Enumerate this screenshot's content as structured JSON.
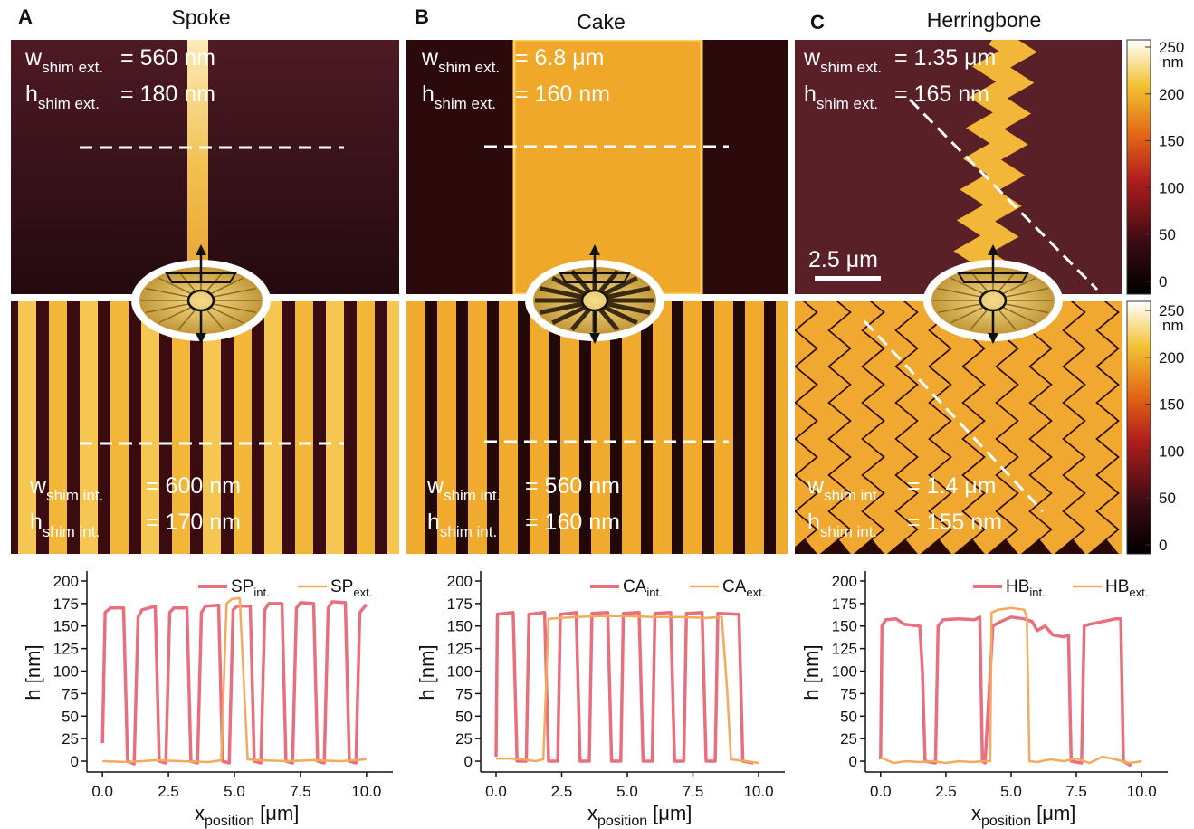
{
  "panels": [
    {
      "label": "A",
      "title": "Spoke",
      "top": [
        {
          "main": "w",
          "sub": "shim ext.",
          "rest": "= 560 nm"
        },
        {
          "main": "h",
          "sub": "shim ext.",
          "rest": "= 180 nm"
        }
      ],
      "bottom": [
        {
          "main": "w",
          "sub": "shim int.",
          "rest": "= 600 nm"
        },
        {
          "main": "h",
          "sub": "shim int.",
          "rest": "= 170 nm"
        }
      ]
    },
    {
      "label": "B",
      "title": "Cake",
      "top": [
        {
          "main": "w",
          "sub": "shim ext.",
          "rest": "= 6.8 μm"
        },
        {
          "main": "h",
          "sub": "shim ext.",
          "rest": "= 160 nm"
        }
      ],
      "bottom": [
        {
          "main": "w",
          "sub": "shim int.",
          "rest": "= 560 nm"
        },
        {
          "main": "h",
          "sub": "shim int.",
          "rest": "= 160 nm"
        }
      ]
    },
    {
      "label": "C",
      "title": "Herringbone",
      "top": [
        {
          "main": "w",
          "sub": "shim ext.",
          "rest": "= 1.35 μm"
        },
        {
          "main": "h",
          "sub": "shim ext.",
          "rest": "= 165 nm"
        }
      ],
      "bottom": [
        {
          "main": "w",
          "sub": "shim int.",
          "rest": "= 1.4 μm"
        },
        {
          "main": "h",
          "sub": "shim int.",
          "rest": "= 155 nm"
        }
      ]
    }
  ],
  "scale_bar": "2.5 μm",
  "colorbar": {
    "unit": "nm",
    "lim": [
      0,
      250
    ],
    "ticks": [
      0,
      50,
      100,
      150,
      200,
      250
    ]
  },
  "chart_data": [
    {
      "type": "line",
      "y_label": "h [nm]",
      "x_label": {
        "main": "x",
        "sub": "position",
        "rest": "[μm]"
      },
      "xlim": [
        -1,
        11
      ],
      "ylim": [
        -8,
        205
      ],
      "xticks": [
        {
          "value": 0,
          "label": "0.0"
        },
        {
          "value": 2.5,
          "label": "2.5"
        },
        {
          "value": 5,
          "label": "5.0"
        },
        {
          "value": 7.5,
          "label": "7.5"
        },
        {
          "value": 10,
          "label": "10.0"
        }
      ],
      "yticks": [
        0,
        25,
        50,
        75,
        100,
        125,
        150,
        175,
        200
      ],
      "series": [
        {
          "name": "SP",
          "name_sub": "int.",
          "color": "#e8707e",
          "x": [
            0,
            0.1,
            0.3,
            0.8,
            0.95,
            1.2,
            1.35,
            1.5,
            2.0,
            2.15,
            2.4,
            2.55,
            2.7,
            3.2,
            3.35,
            3.6,
            3.75,
            3.9,
            4.4,
            4.55,
            4.8,
            4.95,
            5.1,
            5.6,
            5.75,
            6.0,
            6.15,
            6.3,
            6.8,
            6.95,
            7.2,
            7.35,
            7.5,
            8.0,
            8.15,
            8.4,
            8.55,
            8.7,
            9.2,
            9.35,
            9.6,
            9.75,
            10.0
          ],
          "values": [
            20,
            165,
            170,
            170,
            0,
            -3,
            160,
            168,
            172,
            0,
            -2,
            165,
            170,
            170,
            0,
            -2,
            165,
            172,
            173,
            0,
            -2,
            168,
            172,
            172,
            0,
            -2,
            168,
            175,
            175,
            0,
            -2,
            170,
            176,
            175,
            0,
            -2,
            170,
            177,
            176,
            0,
            -2,
            165,
            174
          ]
        },
        {
          "name": "SP",
          "name_sub": "ext.",
          "color": "#f5a95c",
          "x": [
            0,
            1,
            2,
            3,
            4,
            4.5,
            4.7,
            4.9,
            5.2,
            5.4,
            5.5,
            6,
            7,
            8,
            9,
            10
          ],
          "values": [
            0,
            -1,
            1,
            0,
            -1,
            1,
            175,
            180,
            181,
            60,
            2,
            1,
            0,
            1,
            0,
            2
          ]
        }
      ]
    },
    {
      "type": "line",
      "y_label": "h [nm]",
      "x_label": {
        "main": "x",
        "sub": "position",
        "rest": "[μm]"
      },
      "xlim": [
        -1,
        11
      ],
      "ylim": [
        -8,
        205
      ],
      "xticks": [
        {
          "value": 0,
          "label": "0.0"
        },
        {
          "value": 2.5,
          "label": "2.5"
        },
        {
          "value": 5,
          "label": "5.0"
        },
        {
          "value": 7.5,
          "label": "7.5"
        },
        {
          "value": 10,
          "label": "10.0"
        }
      ],
      "yticks": [
        0,
        25,
        50,
        75,
        100,
        125,
        150,
        175,
        200
      ],
      "series": [
        {
          "name": "CA",
          "name_sub": "int.",
          "color": "#e8707e",
          "x": [
            0,
            0.05,
            0.65,
            0.8,
            1.15,
            1.25,
            1.85,
            2.0,
            2.35,
            2.45,
            3.05,
            3.2,
            3.55,
            3.65,
            4.25,
            4.4,
            4.75,
            4.85,
            5.45,
            5.6,
            5.95,
            6.05,
            6.65,
            6.8,
            7.15,
            7.25,
            7.85,
            8.0,
            8.35,
            8.45,
            9.25,
            9.4,
            9.8
          ],
          "values": [
            5,
            163,
            165,
            0,
            0,
            163,
            165,
            0,
            0,
            163,
            165,
            0,
            0,
            164,
            165,
            0,
            0,
            164,
            165,
            0,
            0,
            164,
            165,
            0,
            0,
            164,
            165,
            0,
            0,
            164,
            163,
            0,
            -2
          ]
        },
        {
          "name": "CA",
          "name_sub": "ext.",
          "color": "#f5a95c",
          "x": [
            0,
            0.5,
            1.0,
            1.5,
            1.8,
            2.0,
            3,
            4,
            5,
            6,
            7,
            8,
            8.6,
            8.8,
            8.95,
            9.5,
            10
          ],
          "values": [
            3,
            3,
            2,
            0,
            2,
            158,
            160,
            161,
            161,
            160,
            160,
            159,
            160,
            80,
            2,
            0,
            -2
          ]
        }
      ]
    },
    {
      "type": "line",
      "y_label": "h [nm]",
      "x_label": {
        "main": "x",
        "sub": "position",
        "rest": "[μm]"
      },
      "xlim": [
        -1,
        11
      ],
      "ylim": [
        -8,
        205
      ],
      "xticks": [
        {
          "value": 0,
          "label": "0.0"
        },
        {
          "value": 2.5,
          "label": "2.5"
        },
        {
          "value": 5,
          "label": "5.0"
        },
        {
          "value": 7.5,
          "label": "7.5"
        },
        {
          "value": 10,
          "label": "10.0"
        }
      ],
      "yticks": [
        0,
        25,
        50,
        75,
        100,
        125,
        150,
        175,
        200
      ],
      "series": [
        {
          "name": "HB",
          "name_sub": "int.",
          "color": "#e8707e",
          "x": [
            0,
            0.05,
            0.2,
            0.6,
            0.9,
            1.5,
            1.6,
            1.7,
            2.1,
            2.2,
            2.4,
            3.0,
            3.6,
            3.8,
            3.9,
            4.0,
            4.3,
            4.6,
            5.0,
            5.5,
            5.8,
            6.0,
            6.3,
            6.6,
            7.0,
            7.2,
            7.3,
            7.7,
            7.8,
            8.0,
            8.5,
            9.0,
            9.2,
            9.3,
            9.6
          ],
          "values": [
            2,
            150,
            157,
            158,
            152,
            150,
            100,
            0,
            -2,
            150,
            157,
            158,
            157,
            160,
            0,
            -2,
            150,
            155,
            160,
            158,
            155,
            145,
            150,
            140,
            138,
            140,
            0,
            -2,
            150,
            152,
            155,
            158,
            158,
            0,
            -5
          ]
        },
        {
          "name": "HB",
          "name_sub": "ext.",
          "color": "#f5a95c",
          "x": [
            0,
            0.5,
            1,
            1.5,
            2,
            2.5,
            3,
            3.5,
            4,
            4.2,
            4.25,
            4.5,
            5,
            5.5,
            5.6,
            5.7,
            6,
            6.5,
            7,
            7.5,
            8,
            8.5,
            9,
            9.5,
            9.8,
            10
          ],
          "values": [
            4,
            -2,
            0,
            -1,
            0,
            -2,
            0,
            -1,
            0,
            0,
            165,
            168,
            170,
            168,
            160,
            0,
            -1,
            2,
            0,
            3,
            -2,
            5,
            2,
            -2,
            -1,
            0
          ]
        }
      ]
    }
  ]
}
